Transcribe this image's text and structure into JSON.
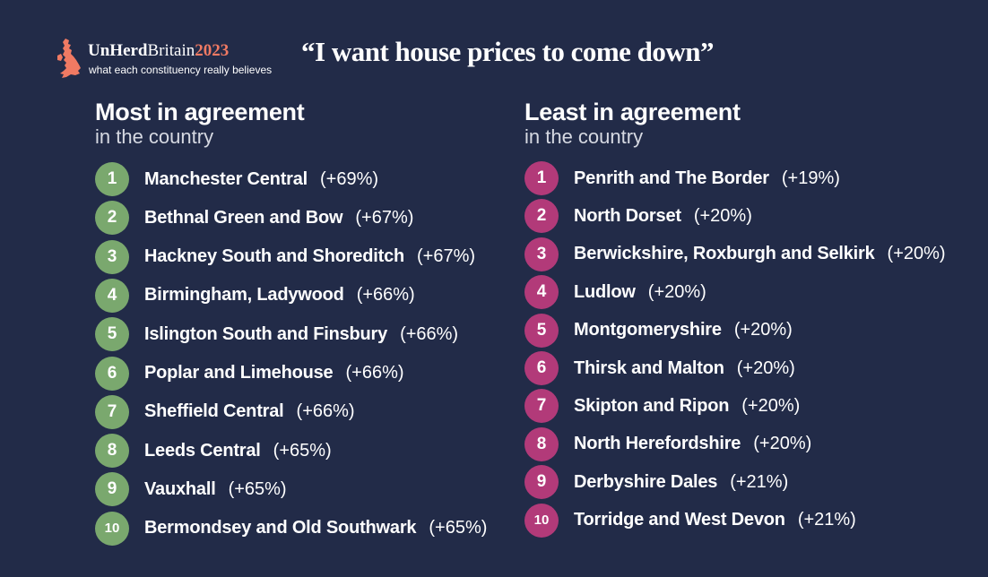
{
  "logo": {
    "brand_unherd": "UnHerd",
    "brand_britain": "Britain",
    "brand_year": "2023",
    "tagline": "what each constituency really believes",
    "icon": "uk-map-icon",
    "accent_color": "#f07a63"
  },
  "headline": "“I want house prices to come down”",
  "colors": {
    "background": "#222b48",
    "most": "#7aa86e",
    "least": "#b23a79"
  },
  "most": {
    "title": "Most in agreement",
    "subtitle": "in the country",
    "items": [
      {
        "rank": "1",
        "name": "Manchester Central",
        "pct": "(+69%)"
      },
      {
        "rank": "2",
        "name": "Bethnal Green and Bow",
        "pct": "(+67%)"
      },
      {
        "rank": "3",
        "name": "Hackney South and Shoreditch",
        "pct": "(+67%)"
      },
      {
        "rank": "4",
        "name": "Birmingham, Ladywood",
        "pct": "(+66%)"
      },
      {
        "rank": "5",
        "name": "Islington South and Finsbury",
        "pct": "(+66%)"
      },
      {
        "rank": "6",
        "name": "Poplar and Limehouse",
        "pct": "(+66%)"
      },
      {
        "rank": "7",
        "name": "Sheffield Central",
        "pct": "(+66%)"
      },
      {
        "rank": "8",
        "name": "Leeds Central",
        "pct": "(+65%)"
      },
      {
        "rank": "9",
        "name": "Vauxhall",
        "pct": "(+65%)"
      },
      {
        "rank": "10",
        "name": "Bermondsey and Old Southwark",
        "pct": "(+65%)"
      }
    ]
  },
  "least": {
    "title": "Least in agreement",
    "subtitle": "in the country",
    "items": [
      {
        "rank": "1",
        "name": "Penrith and The Border",
        "pct": "(+19%)"
      },
      {
        "rank": "2",
        "name": "North Dorset",
        "pct": "(+20%)"
      },
      {
        "rank": "3",
        "name": "Berwickshire, Roxburgh and Selkirk",
        "pct": "(+20%)"
      },
      {
        "rank": "4",
        "name": "Ludlow",
        "pct": "(+20%)"
      },
      {
        "rank": "5",
        "name": "Montgomeryshire",
        "pct": "(+20%)"
      },
      {
        "rank": "6",
        "name": "Thirsk and Malton",
        "pct": "(+20%)"
      },
      {
        "rank": "7",
        "name": "Skipton and Ripon",
        "pct": "(+20%)"
      },
      {
        "rank": "8",
        "name": "North Herefordshire",
        "pct": "(+20%)"
      },
      {
        "rank": "9",
        "name": "Derbyshire Dales",
        "pct": "(+21%)"
      },
      {
        "rank": "10",
        "name": "Torridge and West Devon",
        "pct": "(+21%)"
      }
    ]
  }
}
